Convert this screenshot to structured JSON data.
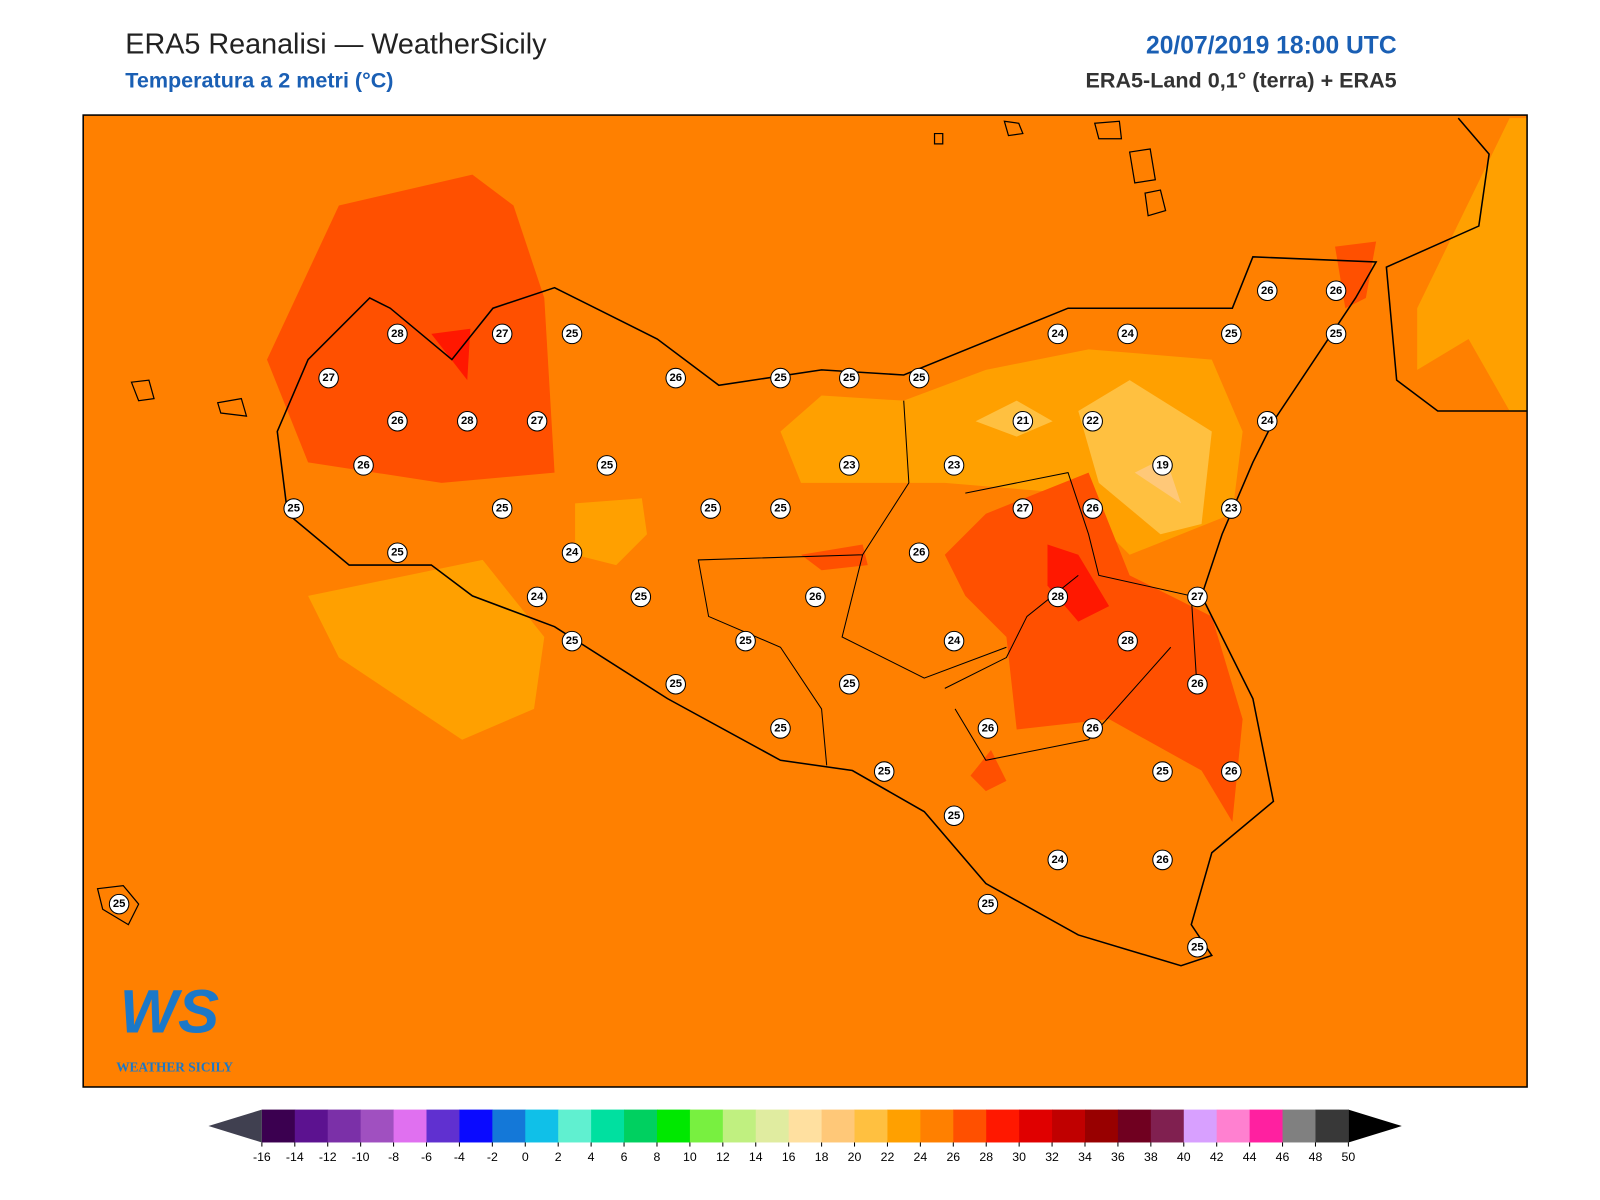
{
  "header": {
    "title": "ERA5 Reanalisi — WeatherSicily",
    "subtitle": "Temperatura a 2 metri (°C)",
    "date": "20/07/2019 18:00 UTC",
    "source": "ERA5-Land 0,1° (terra) + ERA5"
  },
  "stations": {
    "values": [
      26,
      26,
      28,
      27,
      25,
      24,
      24,
      25,
      25,
      27,
      26,
      25,
      25,
      25,
      26,
      28,
      27,
      21,
      22,
      24,
      26,
      25,
      23,
      23,
      19,
      25,
      25,
      25,
      25,
      27,
      26,
      23,
      25,
      24,
      26,
      24,
      25,
      26,
      28,
      27,
      25,
      25,
      24,
      28,
      25,
      25,
      26,
      25,
      26,
      26,
      25,
      25,
      26,
      25,
      24,
      26,
      25,
      25,
      25
    ]
  },
  "colorbar": {
    "ticks": [
      -16,
      -14,
      -12,
      -10,
      -8,
      -6,
      -4,
      -2,
      0,
      2,
      4,
      6,
      8,
      10,
      12,
      14,
      16,
      18,
      20,
      22,
      24,
      26,
      28,
      30,
      32,
      34,
      36,
      38,
      40,
      42,
      44,
      46,
      48,
      50
    ],
    "colors": [
      "#3b0050",
      "#5c1290",
      "#7b30a8",
      "#a050c0",
      "#e070f0",
      "#6030d0",
      "#0a0aff",
      "#1478d8",
      "#10c0e8",
      "#60f0d0",
      "#00e0a0",
      "#00d060",
      "#00e800",
      "#78f040",
      "#c0f080",
      "#e0eca0",
      "#ffe0a0",
      "#ffc878",
      "#ffc040",
      "#ffa000",
      "#ff8000",
      "#ff5000",
      "#ff1800",
      "#e00000",
      "#c00000",
      "#980000",
      "#700020",
      "#802050",
      "#d8a0ff",
      "#ff80d0",
      "#ff20a0",
      "#808080",
      "#383838"
    ]
  },
  "logo": {
    "mark": "WS",
    "name": "WEATHER SICILY"
  }
}
